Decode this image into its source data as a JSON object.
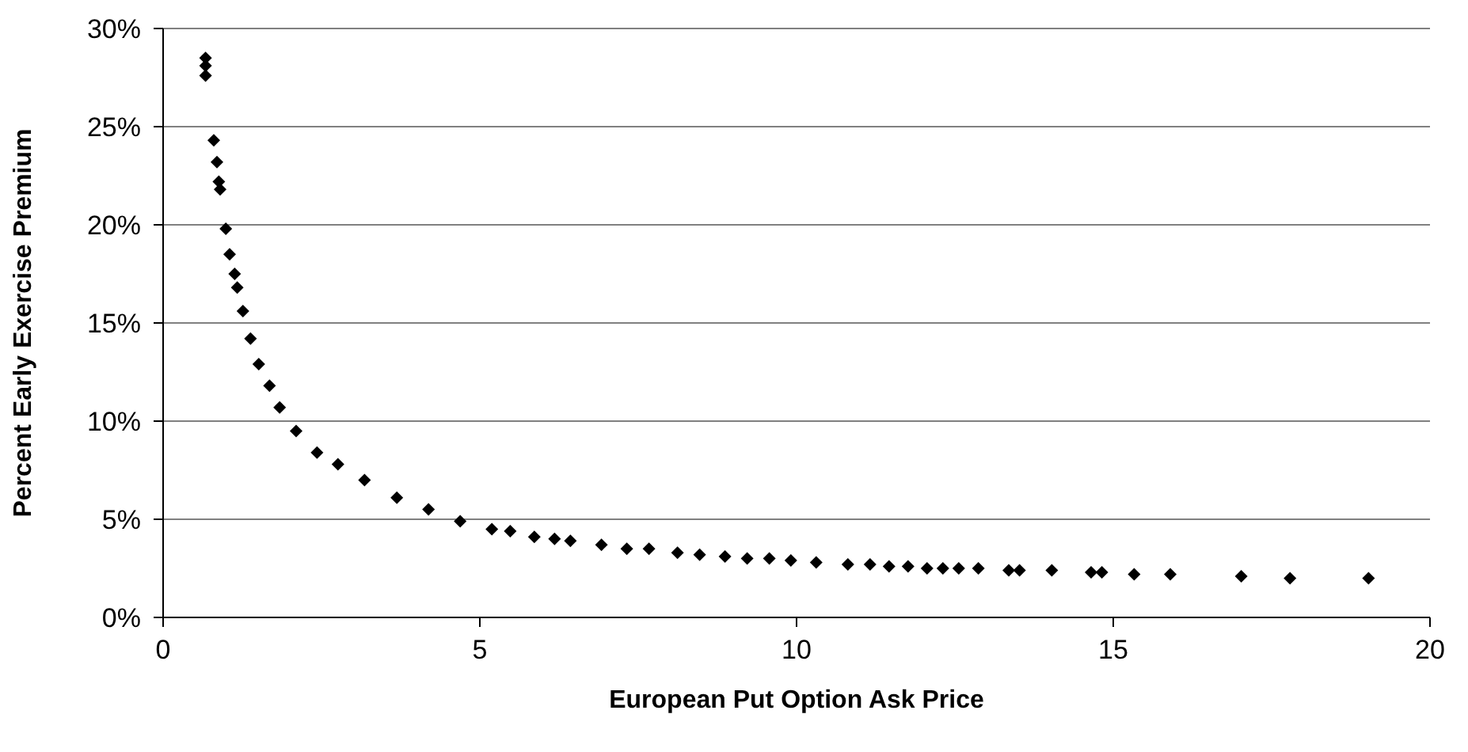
{
  "chart_data": {
    "type": "scatter",
    "xlabel": "European Put Option Ask Price",
    "ylabel": "Percent Early Exercise Premium",
    "x": [
      0.67,
      0.67,
      0.67,
      0.8,
      0.85,
      0.88,
      0.9,
      0.99,
      1.05,
      1.13,
      1.17,
      1.26,
      1.38,
      1.51,
      1.68,
      1.84,
      2.1,
      2.43,
      2.76,
      3.18,
      3.69,
      4.19,
      4.69,
      5.19,
      5.48,
      5.86,
      6.18,
      6.43,
      6.92,
      7.32,
      7.67,
      8.12,
      8.47,
      8.87,
      9.22,
      9.57,
      9.91,
      10.31,
      10.81,
      11.16,
      11.46,
      11.76,
      12.06,
      12.31,
      12.56,
      12.87,
      13.35,
      13.52,
      14.03,
      14.65,
      14.82,
      15.33,
      15.9,
      17.02,
      17.79,
      19.03
    ],
    "series": [
      {
        "color": "#000000",
        "values": [
          28.5,
          28.1,
          27.6,
          24.3,
          23.2,
          22.2,
          21.8,
          19.8,
          18.5,
          17.5,
          16.8,
          15.6,
          14.2,
          12.9,
          11.8,
          10.7,
          9.5,
          8.4,
          7.8,
          7.0,
          6.1,
          5.5,
          4.9,
          4.5,
          4.4,
          4.1,
          4.0,
          3.9,
          3.7,
          3.5,
          3.5,
          3.3,
          3.2,
          3.1,
          3.0,
          3.0,
          2.9,
          2.8,
          2.7,
          2.7,
          2.6,
          2.6,
          2.5,
          2.5,
          2.5,
          2.5,
          2.4,
          2.4,
          2.4,
          2.3,
          2.3,
          2.2,
          2.2,
          2.1,
          2.0,
          2.0
        ]
      }
    ],
    "xlim": [
      0,
      20
    ],
    "xticks": [
      0,
      5,
      10,
      15,
      20
    ],
    "ylim": [
      0,
      30
    ],
    "yticks": [
      {
        "value": 0,
        "label": "0%"
      },
      {
        "value": 5,
        "label": "5%"
      },
      {
        "value": 10,
        "label": "10%"
      },
      {
        "value": 15,
        "label": "15%"
      },
      {
        "value": 20,
        "label": "20%"
      },
      {
        "value": 25,
        "label": "25%"
      },
      {
        "value": 30,
        "label": "30%"
      }
    ],
    "grid": "y",
    "marker": "diamond",
    "legend": false
  }
}
